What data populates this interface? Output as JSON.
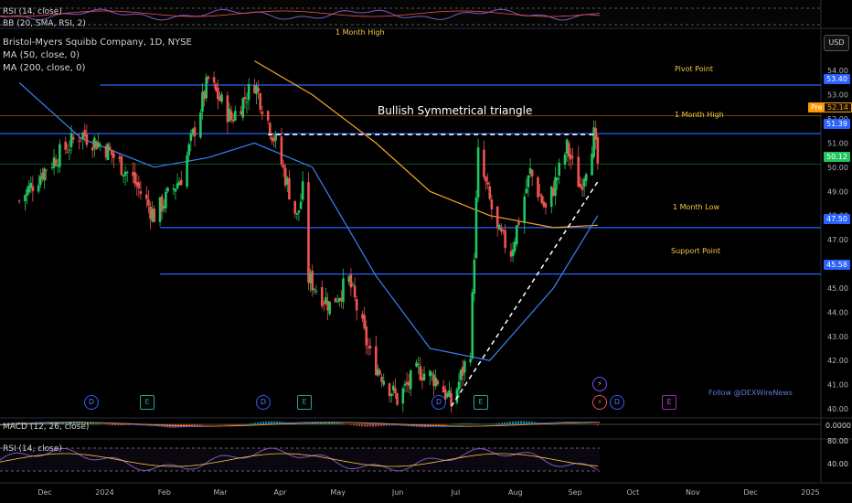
{
  "top_indicators": {
    "rsi_label": "RSI (14, close)",
    "bb_label": "BB (20, SMA, RSI, 2)"
  },
  "legend": {
    "title": "Bristol-Myers Squibb Company, 1D, NYSE",
    "ma50": "MA (50, close, 0)",
    "ma200": "MA (200, close, 0)"
  },
  "currency_button": "USD",
  "chart_title": "Bullish Symmetrical triangle",
  "watermark": "Follow @DEXWireNews",
  "annotations": {
    "pivot": "Pivot Point",
    "month_high": "1 Month High",
    "month_high_top": "1 Month High",
    "month_low": "1 Month Low",
    "support": "Support Point"
  },
  "price_tags": {
    "pivot": "53.40",
    "pre": "Pre",
    "pre_value": "52.14",
    "month_high": "51.39",
    "last": "50.12",
    "month_low": "47.50",
    "support": "45.58"
  },
  "macd_label": "MACD (12, 26, close)",
  "macd_axis": "0.0000",
  "rsi_label": "RSI (14, close)",
  "rsi_axis": [
    "80.00",
    "40.00"
  ],
  "event_markers": [
    "D",
    "E",
    "D",
    "E",
    "D",
    "E",
    "D",
    "E"
  ],
  "colors": {
    "up": "#26a69a",
    "up_bright": "#22c55e",
    "down": "#ef5350",
    "ma50": "#3b82f6",
    "ma200": "#f5a623",
    "level": "#2962ff",
    "pre": "#ff9800",
    "last": "#22c55e"
  },
  "chart_data": {
    "type": "candlestick",
    "title": "Bristol-Myers Squibb Company, 1D, NYSE",
    "x_tick_labels": [
      "Dec",
      "2024",
      "Feb",
      "Mar",
      "Apr",
      "May",
      "Jun",
      "Jul",
      "Aug",
      "Sep",
      "Oct",
      "Nov",
      "Dec",
      "2025"
    ],
    "y_tick_labels": [
      "54.00",
      "53.00",
      "52.00",
      "51.00",
      "50.00",
      "49.00",
      "48.00",
      "47.00",
      "46.00",
      "45.00",
      "44.00",
      "43.00",
      "42.00",
      "41.00",
      "40.00"
    ],
    "ylim": [
      39.7,
      54.8
    ],
    "levels": [
      {
        "name": "Pivot Point",
        "value": 53.4
      },
      {
        "name": "1 Month High",
        "value": 51.39
      },
      {
        "name": "1 Month Low",
        "value": 47.5
      },
      {
        "name": "Support Point",
        "value": 45.58
      }
    ],
    "pre_market": 52.14,
    "last": 50.12,
    "path_points": [
      {
        "date": "2023-12-01",
        "close": 48.6
      },
      {
        "date": "2023-12-15",
        "close": 50.0
      },
      {
        "date": "2024-01-02",
        "close": 51.4
      },
      {
        "date": "2024-01-15",
        "close": 50.8
      },
      {
        "date": "2024-01-29",
        "close": 49.5
      },
      {
        "date": "2024-02-09",
        "close": 48.0
      },
      {
        "date": "2024-02-23",
        "close": 49.6
      },
      {
        "date": "2024-03-08",
        "close": 53.6
      },
      {
        "date": "2024-03-20",
        "close": 52.0
      },
      {
        "date": "2024-04-01",
        "close": 53.5
      },
      {
        "date": "2024-04-12",
        "close": 51.0
      },
      {
        "date": "2024-04-23",
        "close": 47.9
      },
      {
        "date": "2024-04-26",
        "close": 49.0
      },
      {
        "date": "2024-04-29",
        "close": 45.4
      },
      {
        "date": "2024-05-10",
        "close": 44.3
      },
      {
        "date": "2024-05-20",
        "close": 45.3
      },
      {
        "date": "2024-05-31",
        "close": 42.2
      },
      {
        "date": "2024-06-14",
        "close": 40.4
      },
      {
        "date": "2024-06-25",
        "close": 41.6
      },
      {
        "date": "2024-07-05",
        "close": 41.2
      },
      {
        "date": "2024-07-12",
        "close": 40.2
      },
      {
        "date": "2024-07-22",
        "close": 42.5
      },
      {
        "date": "2024-07-26",
        "close": 50.5
      },
      {
        "date": "2024-08-05",
        "close": 47.3
      },
      {
        "date": "2024-08-12",
        "close": 46.5
      },
      {
        "date": "2024-08-22",
        "close": 49.8
      },
      {
        "date": "2024-08-30",
        "close": 48.2
      },
      {
        "date": "2024-09-10",
        "close": 50.8
      },
      {
        "date": "2024-09-17",
        "close": 49.2
      },
      {
        "date": "2024-09-24",
        "close": 51.3
      },
      {
        "date": "2024-09-26",
        "close": 50.12
      }
    ],
    "ma50_points": [
      {
        "date": "2023-12-01",
        "value": 53.5
      },
      {
        "date": "2024-01-02",
        "value": 51.2
      },
      {
        "date": "2024-02-09",
        "value": 50.0
      },
      {
        "date": "2024-03-08",
        "value": 50.4
      },
      {
        "date": "2024-04-01",
        "value": 51.0
      },
      {
        "date": "2024-05-01",
        "value": 50.0
      },
      {
        "date": "2024-06-03",
        "value": 45.5
      },
      {
        "date": "2024-07-01",
        "value": 42.5
      },
      {
        "date": "2024-08-01",
        "value": 42.0
      },
      {
        "date": "2024-09-03",
        "value": 45.0
      },
      {
        "date": "2024-09-26",
        "value": 48.0
      }
    ],
    "ma200_points": [
      {
        "date": "2024-04-01",
        "value": 54.4
      },
      {
        "date": "2024-05-01",
        "value": 53.0
      },
      {
        "date": "2024-06-03",
        "value": 51.0
      },
      {
        "date": "2024-07-01",
        "value": 49.0
      },
      {
        "date": "2024-08-01",
        "value": 48.0
      },
      {
        "date": "2024-09-03",
        "value": 47.5
      },
      {
        "date": "2024-09-26",
        "value": 47.6
      }
    ],
    "triangle": {
      "upper": [
        {
          "date": "2024-04-08",
          "value": 51.35
        },
        {
          "date": "2024-09-24",
          "value": 51.35
        }
      ],
      "lower": [
        {
          "date": "2024-07-12",
          "value": 40.1
        },
        {
          "date": "2024-09-26",
          "value": 49.4
        }
      ]
    }
  }
}
